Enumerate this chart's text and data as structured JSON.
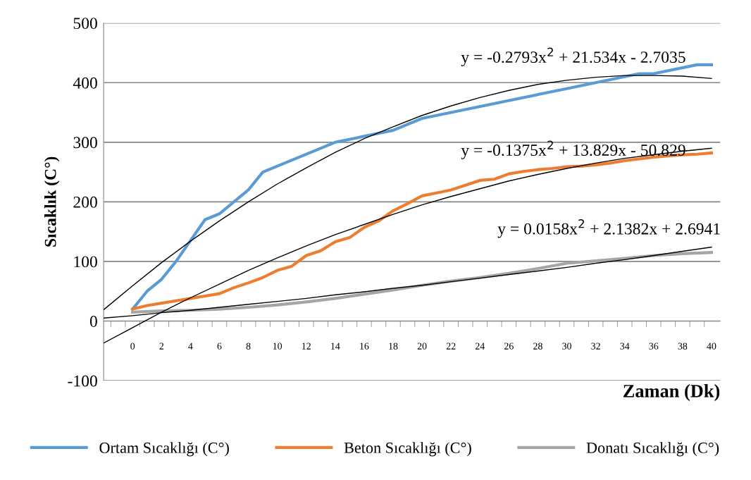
{
  "chart_data": {
    "type": "line",
    "ylabel": "Sıcaklık (C°)",
    "xlabel": "Zaman (Dk)",
    "xlim": [
      -2,
      40.6
    ],
    "ylim": [
      -100,
      500
    ],
    "yticks": [
      -100,
      0,
      100,
      200,
      300,
      400,
      500
    ],
    "xticks": [
      {
        "value": -1.5,
        "label": null
      },
      0,
      {
        "value": -0.5,
        "label": null
      },
      {
        "value": 0.5,
        "label": null
      },
      2,
      {
        "value": 1.5,
        "label": null
      },
      {
        "value": 2.5,
        "label": null
      },
      4,
      {
        "value": 3.5,
        "label": null
      },
      {
        "value": 4.5,
        "label": null
      },
      6,
      {
        "value": 5.5,
        "label": null
      },
      {
        "value": 6.5,
        "label": null
      },
      8,
      {
        "value": 7.5,
        "label": null
      },
      {
        "value": 8.5,
        "label": null
      },
      10,
      {
        "value": 9.5,
        "label": null
      },
      {
        "value": 10.5,
        "label": null
      },
      12,
      {
        "value": 11.5,
        "label": null
      },
      {
        "value": 12.5,
        "label": null
      },
      14,
      {
        "value": 13.5,
        "label": null
      },
      {
        "value": 14.5,
        "label": null
      },
      16,
      {
        "value": 15.5,
        "label": null
      },
      {
        "value": 16.5,
        "label": null
      },
      18,
      {
        "value": 17.5,
        "label": null
      },
      {
        "value": 18.5,
        "label": null
      },
      20,
      {
        "value": 19.5,
        "label": null
      },
      {
        "value": 20.5,
        "label": null
      },
      22,
      {
        "value": 21.5,
        "label": null
      },
      {
        "value": 22.5,
        "label": null
      },
      24,
      {
        "value": 23.5,
        "label": null
      },
      {
        "value": 24.5,
        "label": null
      },
      26,
      {
        "value": 25.5,
        "label": null
      },
      {
        "value": 26.5,
        "label": null
      },
      28,
      {
        "value": 27.5,
        "label": null
      },
      {
        "value": 28.5,
        "label": null
      },
      30,
      {
        "value": 29.5,
        "label": null
      },
      {
        "value": 30.5,
        "label": null
      },
      32,
      {
        "value": 31.5,
        "label": null
      },
      {
        "value": 32.5,
        "label": null
      },
      34,
      {
        "value": 33.5,
        "label": null
      },
      {
        "value": 34.5,
        "label": null
      },
      36,
      {
        "value": 35.5,
        "label": null
      },
      {
        "value": 36.5,
        "label": null
      },
      38,
      {
        "value": 37.5,
        "label": null
      },
      {
        "value": 38.5,
        "label": null
      },
      40,
      {
        "value": 39.5,
        "label": null
      }
    ],
    "grid": "y",
    "legend": "bottom",
    "marker": "none",
    "line_style": "solid",
    "series": [
      {
        "name": "Ortam Sıcaklığı (C°)",
        "color": "#5b9bd5",
        "x": [
          0,
          1,
          2,
          3,
          4,
          5,
          6,
          7,
          8,
          9,
          14,
          18,
          20,
          30,
          35,
          36,
          39,
          40
        ],
        "values": [
          20,
          50,
          70,
          100,
          135,
          170,
          180,
          200,
          220,
          250,
          300,
          320,
          340,
          390,
          415,
          415,
          430,
          430
        ]
      },
      {
        "name": "Beton Sıcaklığı (C°)",
        "color": "#ed7d31",
        "x": [
          0,
          1,
          2,
          3,
          4,
          5,
          6,
          7,
          8,
          9,
          10,
          11,
          12,
          13,
          14,
          15,
          16,
          17,
          18,
          19,
          20,
          21,
          22,
          23,
          24,
          25,
          26,
          27,
          28,
          29,
          30,
          31,
          32,
          33,
          34,
          35,
          36,
          37,
          38,
          39,
          40
        ],
        "values": [
          20,
          26,
          30,
          34,
          38,
          42,
          46,
          56,
          64,
          73,
          85,
          92,
          110,
          118,
          133,
          140,
          157,
          168,
          185,
          197,
          210,
          215,
          220,
          228,
          236,
          238,
          247,
          251,
          254,
          256,
          259,
          260,
          262,
          265,
          269,
          272,
          275,
          277,
          279,
          280,
          282
        ]
      },
      {
        "name": "Donatı Sıcaklığı (C°)",
        "color": "#a5a5a5",
        "x": [
          0,
          2,
          4,
          6,
          8,
          10,
          12,
          14,
          16,
          18,
          20,
          22,
          24,
          26,
          28,
          30,
          32,
          34,
          36,
          38,
          40
        ],
        "values": [
          15,
          17,
          18,
          20,
          23,
          27,
          32,
          38,
          45,
          52,
          60,
          67,
          73,
          80,
          88,
          97,
          101,
          105,
          110,
          113,
          115
        ]
      },
      {
        "color": "#000000",
        "x": [
          -2,
          0,
          2,
          4,
          6,
          8,
          10,
          12,
          14,
          16,
          18,
          20,
          22,
          24,
          26,
          28,
          30,
          32,
          34,
          36,
          38,
          40
        ],
        "values": [
          19,
          59,
          98,
          134,
          168,
          200,
          230,
          257,
          283,
          306,
          326,
          345,
          361,
          375,
          387,
          397,
          404,
          409,
          412,
          412,
          411,
          407
        ]
      },
      {
        "color": "#000000",
        "x": [
          -2,
          0,
          2,
          4,
          6,
          8,
          10,
          12,
          14,
          16,
          18,
          20,
          22,
          24,
          26,
          28,
          30,
          32,
          34,
          36,
          38,
          40
        ],
        "values": [
          -37,
          -11,
          15,
          39,
          62,
          85,
          106,
          126,
          145,
          162,
          179,
          195,
          209,
          222,
          235,
          246,
          256,
          265,
          273,
          279,
          285,
          290
        ]
      },
      {
        "color": "#000000",
        "x": [
          -2,
          0,
          2,
          4,
          6,
          8,
          10,
          12,
          14,
          16,
          18,
          20,
          22,
          24,
          26,
          28,
          30,
          32,
          34,
          36,
          38,
          40
        ],
        "values": [
          5,
          9,
          14,
          18,
          23,
          28,
          33,
          38,
          44,
          49,
          55,
          60,
          66,
          72,
          78,
          84,
          90,
          97,
          103,
          110,
          117,
          124
        ]
      }
    ],
    "annotations": [
      "y = -0.2793x$^{2}$ + 21.534x - 2.7035",
      "y = -0.1375x$^{2}$ + 13.829x - 50.829",
      "y = 0.0158x$^{2}$ + 2.1382x + 2.6941"
    ]
  }
}
